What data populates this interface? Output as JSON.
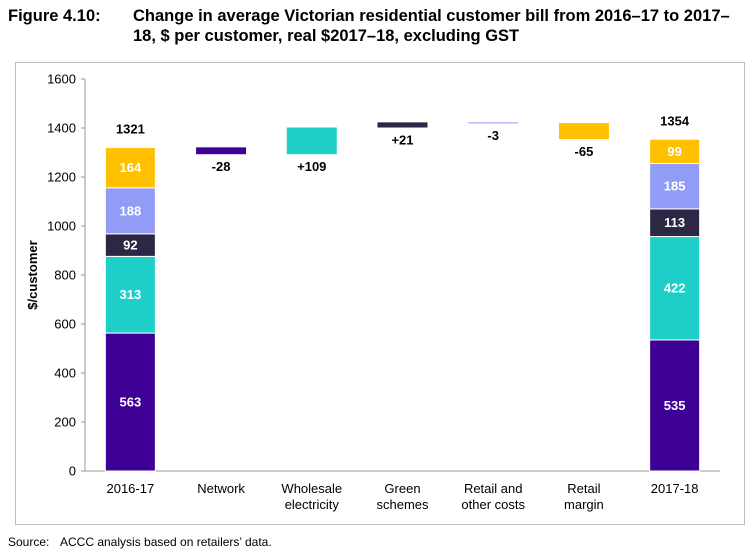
{
  "figure": {
    "label": "Figure 4.10:",
    "title": "Change in average Victorian residential customer bill from 2016–17 to 2017–18, $ per customer, real $2017–18, excluding GST"
  },
  "source": {
    "label": "Source:",
    "text": "ACCC analysis based on retailers’ data."
  },
  "chart_data": {
    "type": "bar",
    "subtype": "waterfall",
    "ylabel": "$/customer",
    "ylim": [
      0,
      1600
    ],
    "yticks": [
      0,
      200,
      400,
      600,
      800,
      1000,
      1200,
      1400,
      1600
    ],
    "grid": false,
    "categories": [
      "2016-17",
      "Network",
      "Wholesale\nelectricity",
      "Green\nschemes",
      "Retail and\nother costs",
      "Retail\nmargin",
      "2017-18"
    ],
    "components": [
      {
        "name": "Network",
        "color": "#3f0096"
      },
      {
        "name": "Wholesale electricity",
        "color": "#1ecfc9"
      },
      {
        "name": "Green schemes",
        "color": "#2b2745"
      },
      {
        "name": "Retail and other costs",
        "color": "#929bf5"
      },
      {
        "name": "Retail margin",
        "color": "#ffc000"
      }
    ],
    "start": {
      "category": "2016-17",
      "total": 1321,
      "stack": [
        563,
        313,
        92,
        188,
        164
      ]
    },
    "changes": [
      {
        "category": "Network",
        "value": -28,
        "label": "-28"
      },
      {
        "category": "Wholesale\nelectricity",
        "value": 109,
        "label": "+109"
      },
      {
        "category": "Green\nschemes",
        "value": 21,
        "label": "+21"
      },
      {
        "category": "Retail and\nother costs",
        "value": -3,
        "label": "-3"
      },
      {
        "category": "Retail\nmargin",
        "value": -65,
        "label": "-65"
      }
    ],
    "end": {
      "category": "2017-18",
      "total": 1354,
      "stack": [
        535,
        422,
        113,
        185,
        99
      ]
    }
  }
}
